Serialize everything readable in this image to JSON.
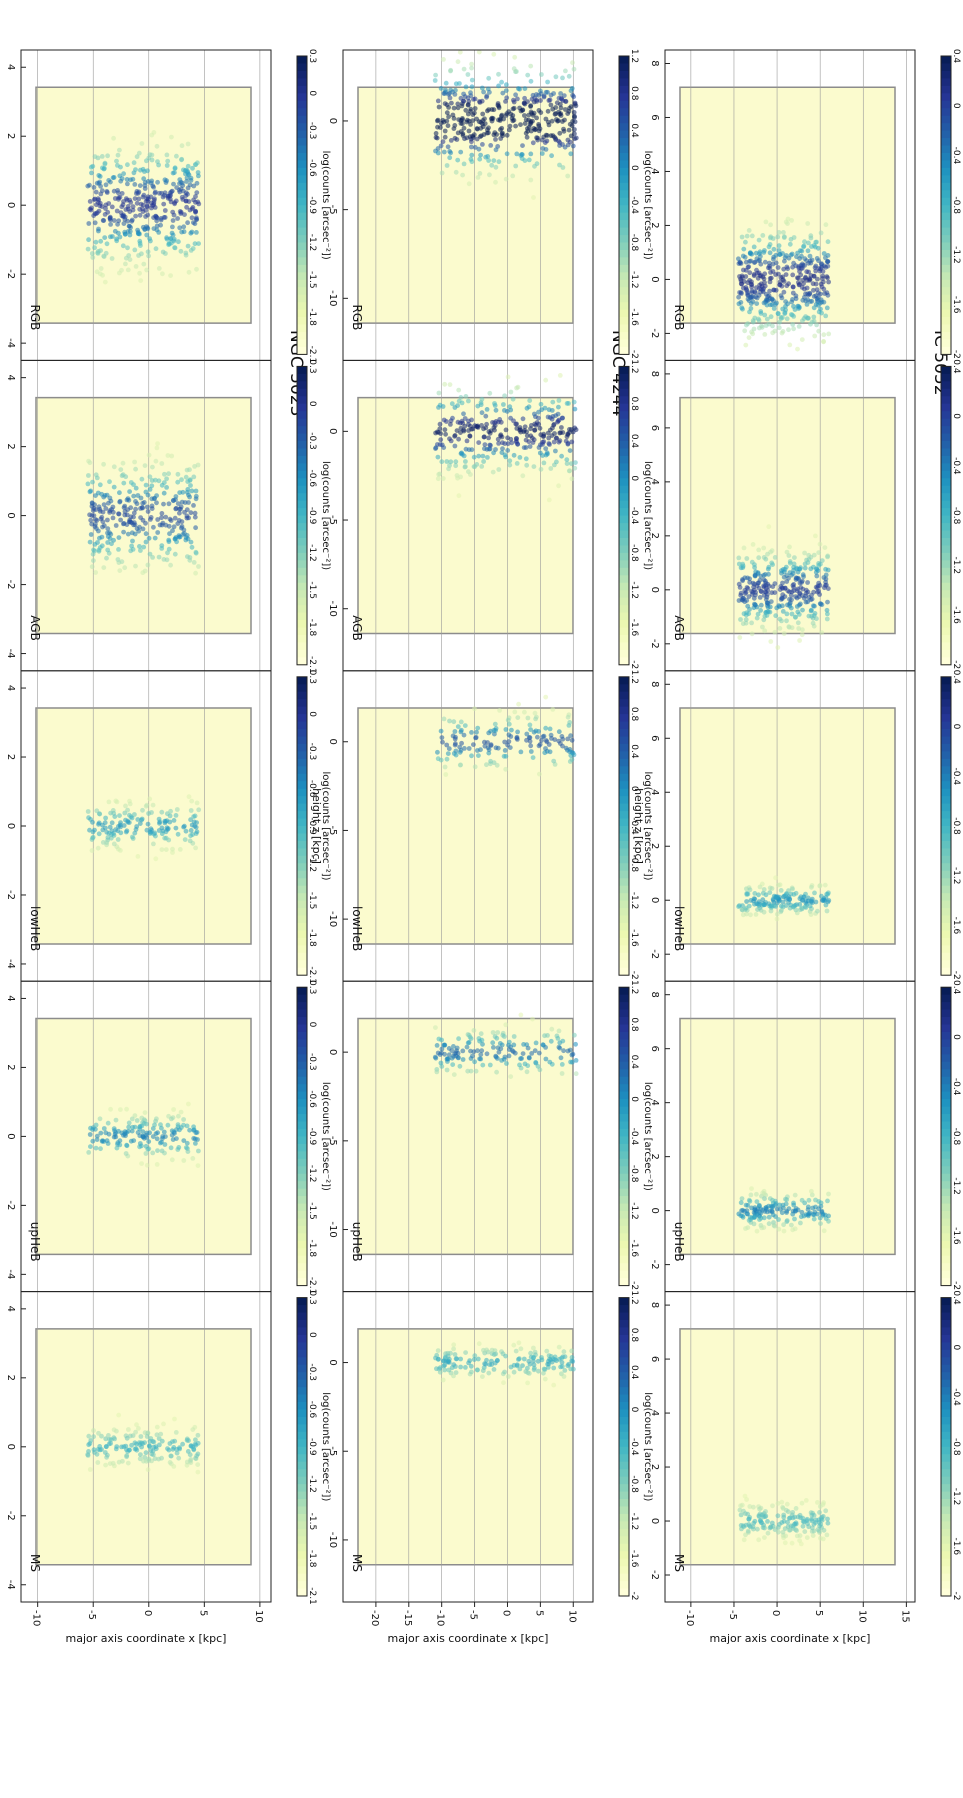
{
  "figure": {
    "rotation": "rotated 90 degrees clockwise; title strip on the right",
    "xlabel": "major axis coordinate x [kpc]",
    "ylabel": "height z [kpc]",
    "colorbar_label": "log(counts [arcsec⁻²])"
  },
  "chart_data": [
    {
      "type": "heatmap",
      "title": "IC 5052",
      "xlabel": "major axis coordinate x [kpc]",
      "ylabel": "height z [kpc]",
      "xlim": [
        -13,
        16
      ],
      "ylim": [
        -3,
        8.5
      ],
      "xticks": [
        -10,
        -5,
        0,
        5,
        10,
        15
      ],
      "yticks": [
        -2,
        0,
        2,
        4,
        6,
        8
      ],
      "panel_labels": [
        "RGB",
        "AGB",
        "lowHeB",
        "upHeB",
        "MS"
      ],
      "colorbar_label": "log(counts [arcsec⁻²])",
      "colorbar_ticks": [
        0.4,
        0.0,
        -0.4,
        -0.8,
        -1.2,
        -1.6,
        -2.0
      ],
      "disk_extent_x": [
        -4.5,
        6.0
      ],
      "disk_scale_height": {
        "RGB": 1.0,
        "AGB": 0.75,
        "lowHeB": 0.3,
        "upHeB": 0.35,
        "MS": 0.35
      },
      "peak_density": {
        "RGB": 0.4,
        "AGB": 0.2,
        "lowHeB": -0.6,
        "upHeB": -0.4,
        "MS": -1.0
      },
      "grid": true
    },
    {
      "type": "heatmap",
      "title": "NGC 4244",
      "xlabel": "major axis coordinate x [kpc]",
      "ylabel": "height z [kpc]",
      "xlim": [
        -25,
        13
      ],
      "ylim": [
        -13.5,
        4
      ],
      "xticks": [
        -20,
        -15,
        -10,
        -5,
        0,
        5,
        10
      ],
      "yticks": [
        -10,
        -5,
        0
      ],
      "panel_labels": [
        "RGB",
        "AGB",
        "lowHeB",
        "upHeB",
        "MS"
      ],
      "colorbar_label": "log(counts [arcsec⁻²])",
      "colorbar_ticks": [
        1.2,
        0.8,
        0.4,
        0.0,
        -0.4,
        -0.8,
        -1.2,
        -1.6,
        -2.0
      ],
      "disk_extent_x": [
        -11,
        10.5
      ],
      "disk_scale_height": {
        "RGB": 1.5,
        "AGB": 1.2,
        "lowHeB": 0.8,
        "upHeB": 0.7,
        "MS": 0.5
      },
      "peak_density": {
        "RGB": 1.2,
        "AGB": 0.6,
        "lowHeB": 0.0,
        "upHeB": -0.2,
        "MS": -0.8
      },
      "grid": true
    },
    {
      "type": "heatmap",
      "title": "NGC 5023",
      "xlabel": "major axis coordinate x [kpc]",
      "ylabel": "height z [kpc]",
      "xlim": [
        -11.5,
        11
      ],
      "ylim": [
        -4.5,
        4.5
      ],
      "xticks": [
        -10,
        -5,
        0,
        5,
        10
      ],
      "yticks": [
        -4,
        -2,
        0,
        2,
        4
      ],
      "panel_labels": [
        "RGB",
        "AGB",
        "lowHeB",
        "upHeB",
        "MS"
      ],
      "colorbar_label": "log(counts [arcsec⁻²])",
      "colorbar_ticks": [
        0.3,
        0.0,
        -0.3,
        -0.6,
        -0.9,
        -1.2,
        -1.5,
        -1.8,
        -2.1
      ],
      "disk_extent_x": [
        -5.5,
        4.5
      ],
      "disk_scale_height": {
        "RGB": 0.9,
        "AGB": 0.8,
        "lowHeB": 0.35,
        "upHeB": 0.35,
        "MS": 0.3
      },
      "peak_density": {
        "RGB": 0.3,
        "AGB": 0.1,
        "lowHeB": -0.6,
        "upHeB": -0.4,
        "MS": -0.9
      },
      "grid": true
    }
  ],
  "colors": {
    "footprint": "#fbfbce",
    "footprint_edge": "#8c8c8c",
    "masked": "#808080",
    "grid": "#9a9a9a",
    "colormap": [
      "#081d58",
      "#253494",
      "#225ea8",
      "#1d91c0",
      "#41b6c4",
      "#7fcdbb",
      "#c7e9b4",
      "#edf8b1",
      "#ffffd9"
    ]
  }
}
